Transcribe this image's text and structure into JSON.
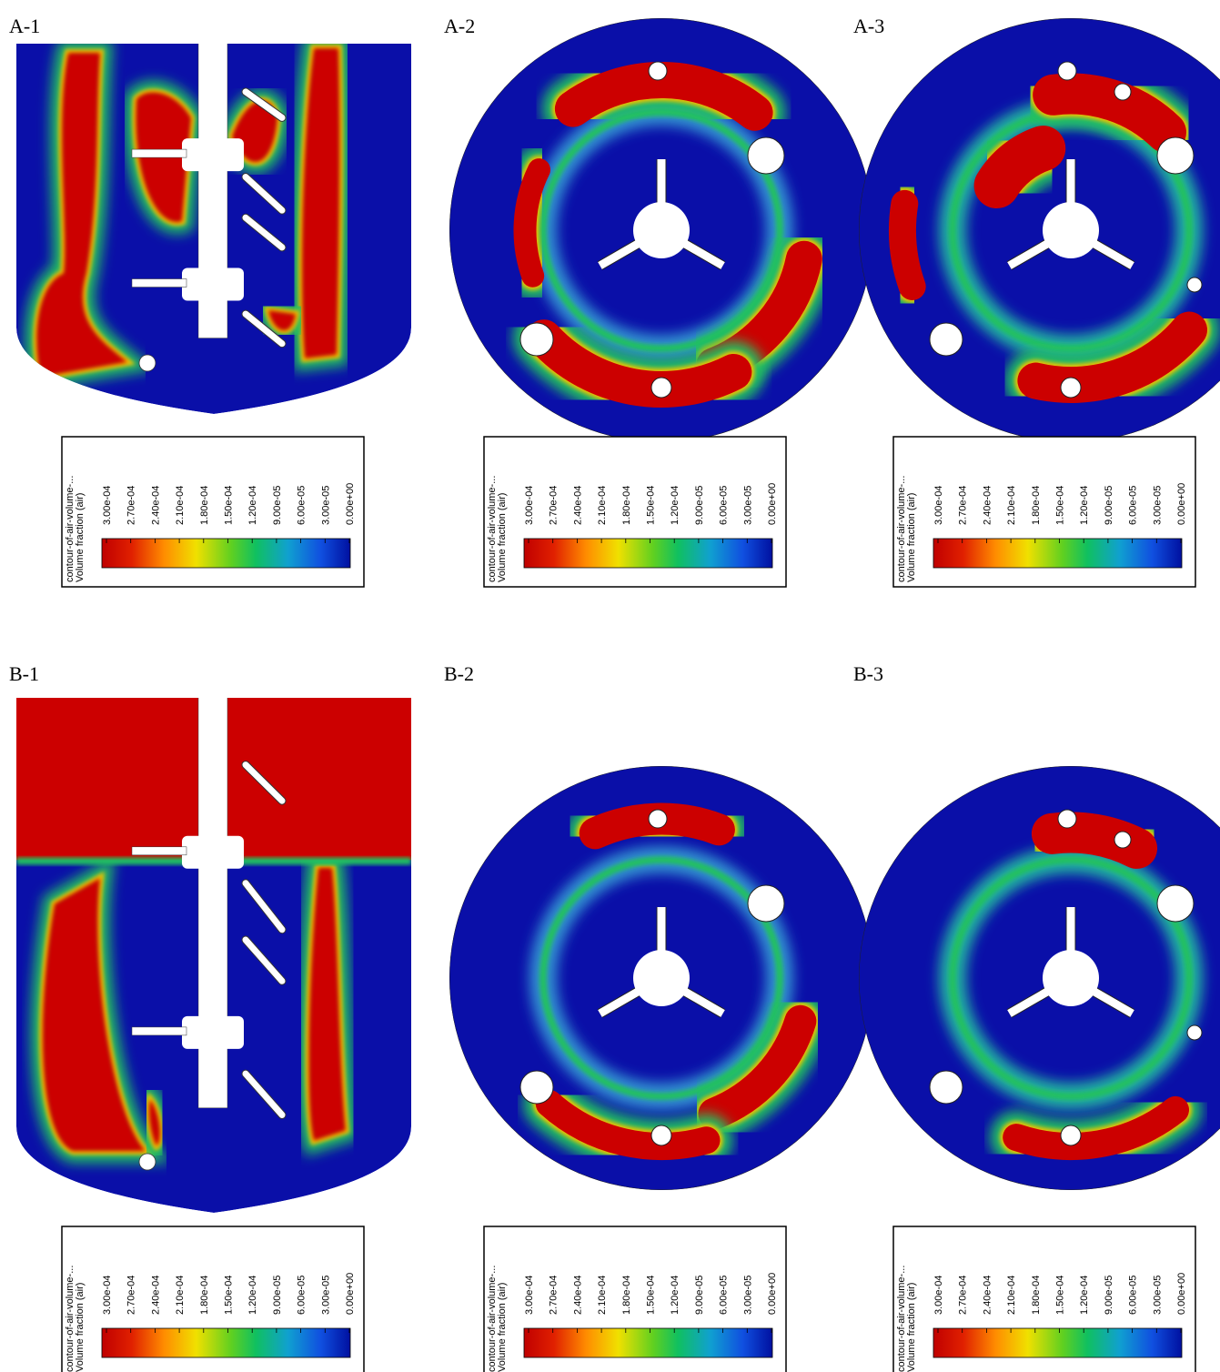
{
  "panels": [
    {
      "label": "A-1",
      "legend": {
        "title": [
          "contour-of-air-volume-...",
          "Volume fraction (air)"
        ],
        "ticks": [
          "3.00e-04",
          "2.70e-04",
          "2.40e-04",
          "2.10e-04",
          "1.80e-04",
          "1.50e-04",
          "1.20e-04",
          "9.00e-05",
          "6.00e-05",
          "3.00e-05",
          "0.00e+00"
        ]
      }
    },
    {
      "label": "A-2",
      "legend": {
        "title": [
          "contour-of-air-volume-...",
          "Volume fraction (air)"
        ],
        "ticks": [
          "3.00e-04",
          "2.70e-04",
          "2.40e-04",
          "2.10e-04",
          "1.80e-04",
          "1.50e-04",
          "1.20e-04",
          "9.00e-05",
          "6.00e-05",
          "3.00e-05",
          "0.00e+00"
        ]
      }
    },
    {
      "label": "A-3",
      "legend": {
        "title": [
          "contour-of-air-volume-...",
          "Volume fraction (air)"
        ],
        "ticks": [
          "3.00e-04",
          "2.70e-04",
          "2.40e-04",
          "2.10e-04",
          "1.80e-04",
          "1.50e-04",
          "1.20e-04",
          "9.00e-05",
          "6.00e-05",
          "3.00e-05",
          "0.00e+00"
        ]
      }
    },
    {
      "label": "B-1",
      "legend": {
        "title": [
          "contour-of-air-volume-...",
          "Volume fraction (air)"
        ],
        "ticks": [
          "3.00e-04",
          "2.70e-04",
          "2.40e-04",
          "2.10e-04",
          "1.80e-04",
          "1.50e-04",
          "1.20e-04",
          "9.00e-05",
          "6.00e-05",
          "3.00e-05",
          "0.00e+00"
        ]
      }
    },
    {
      "label": "B-2",
      "legend": {
        "title": [
          "contour-of-air-volume-...",
          "Volume fraction (air)"
        ],
        "ticks": [
          "3.00e-04",
          "2.70e-04",
          "2.40e-04",
          "2.10e-04",
          "1.80e-04",
          "1.50e-04",
          "1.20e-04",
          "9.00e-05",
          "6.00e-05",
          "3.00e-05",
          "0.00e+00"
        ]
      }
    },
    {
      "label": "B-3",
      "legend": {
        "title": [
          "contour-of-air-volume-...",
          "Volume fraction (air)"
        ],
        "ticks": [
          "3.00e-04",
          "2.70e-04",
          "2.40e-04",
          "2.10e-04",
          "1.80e-04",
          "1.50e-04",
          "1.20e-04",
          "9.00e-05",
          "6.00e-05",
          "3.00e-05",
          "0.00e+00"
        ]
      }
    }
  ]
}
